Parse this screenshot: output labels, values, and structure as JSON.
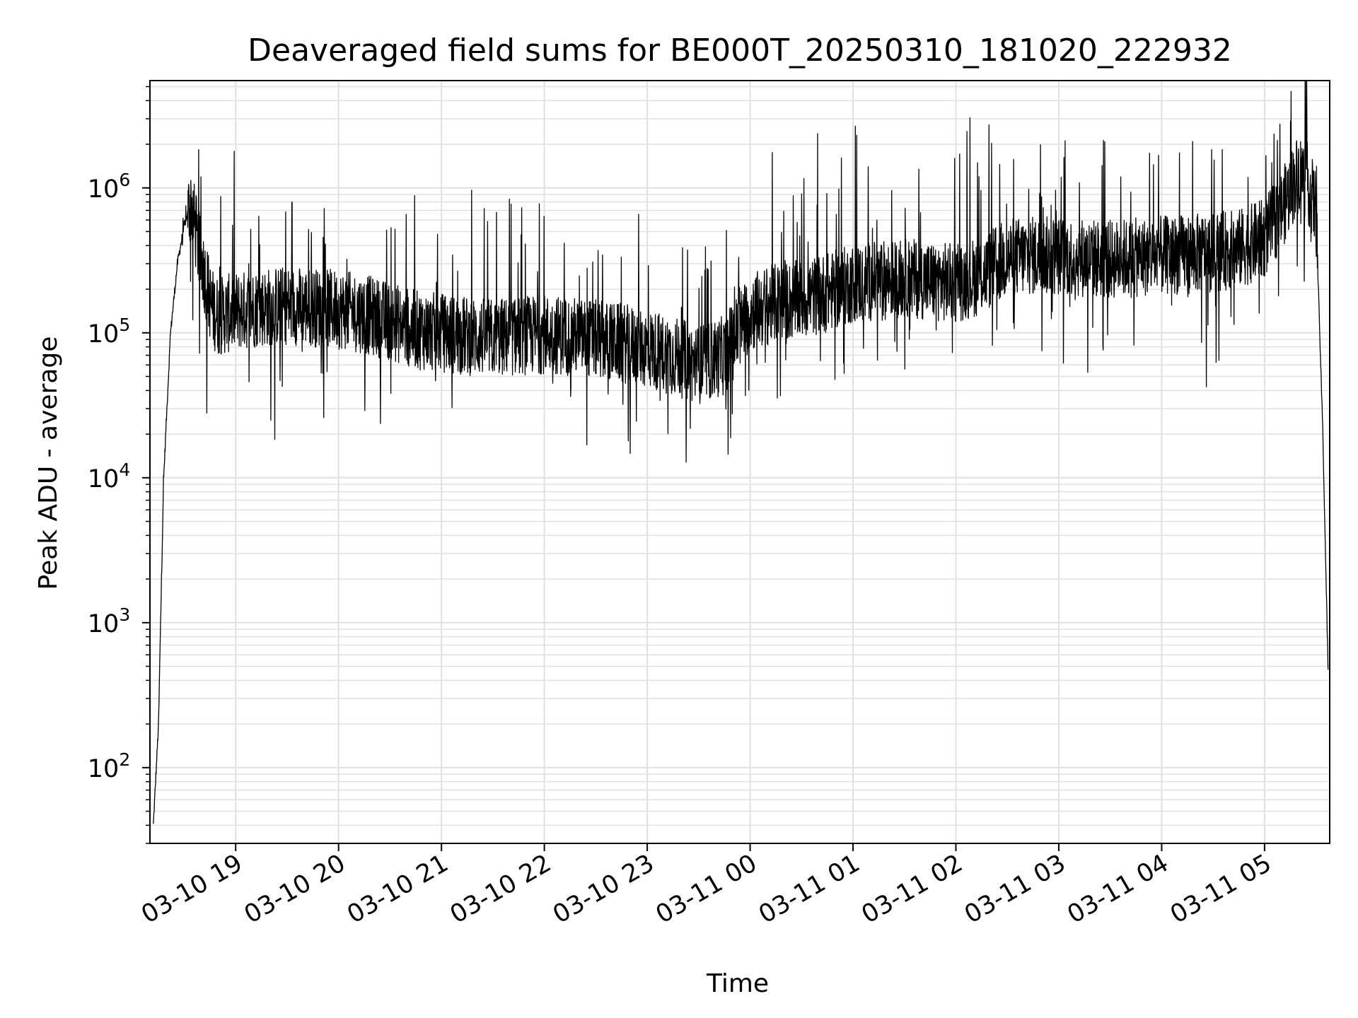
{
  "chart_data": {
    "type": "line",
    "title": "Deaveraged field sums for BE000T_20250310_181020_222932",
    "xlabel": "Time",
    "ylabel": "Peak ADU - average",
    "yscale": "log",
    "ylim": [
      30,
      5500000
    ],
    "xlim": [
      "03-10 18:10",
      "03-11 05:38"
    ],
    "grid": true,
    "line_color": "#000000",
    "grid_color": "#e0e0e0",
    "x_ticks": [
      {
        "label": "03-10 19",
        "time": "03-10 19:00"
      },
      {
        "label": "03-10 20",
        "time": "03-10 20:00"
      },
      {
        "label": "03-10 21",
        "time": "03-10 21:00"
      },
      {
        "label": "03-10 22",
        "time": "03-10 22:00"
      },
      {
        "label": "03-10 23",
        "time": "03-10 23:00"
      },
      {
        "label": "03-11 00",
        "time": "03-11 00:00"
      },
      {
        "label": "03-11 01",
        "time": "03-11 01:00"
      },
      {
        "label": "03-11 02",
        "time": "03-11 02:00"
      },
      {
        "label": "03-11 03",
        "time": "03-11 03:00"
      },
      {
        "label": "03-11 04",
        "time": "03-11 04:00"
      },
      {
        "label": "03-11 05",
        "time": "03-11 05:00"
      }
    ],
    "y_ticks": [
      {
        "base": "10",
        "exp": "2",
        "value": 100
      },
      {
        "base": "10",
        "exp": "3",
        "value": 1000
      },
      {
        "base": "10",
        "exp": "4",
        "value": 10000
      },
      {
        "base": "10",
        "exp": "5",
        "value": 100000
      },
      {
        "base": "10",
        "exp": "6",
        "value": 1000000
      }
    ],
    "series": [
      {
        "x": [
          "03-10 18:12",
          "03-10 18:15",
          "03-10 18:18",
          "03-10 18:22",
          "03-10 18:26",
          "03-10 18:30",
          "03-10 18:34",
          "03-10 18:38",
          "03-10 18:42",
          "03-10 18:46",
          "03-10 18:50",
          "03-10 19:00",
          "03-10 19:15",
          "03-10 19:30",
          "03-10 19:45",
          "03-10 20:00",
          "03-10 20:15",
          "03-10 20:30",
          "03-10 20:45",
          "03-10 21:00",
          "03-10 21:15",
          "03-10 21:30",
          "03-10 21:45",
          "03-10 22:00",
          "03-10 22:15",
          "03-10 22:30",
          "03-10 22:45",
          "03-10 23:00",
          "03-10 23:15",
          "03-10 23:30",
          "03-10 23:45",
          "03-11 00:00",
          "03-11 00:15",
          "03-11 00:30",
          "03-11 00:45",
          "03-11 01:00",
          "03-11 01:15",
          "03-11 01:30",
          "03-11 01:45",
          "03-11 02:00",
          "03-11 02:15",
          "03-11 02:30",
          "03-11 02:45",
          "03-11 03:00",
          "03-11 03:15",
          "03-11 03:30",
          "03-11 03:45",
          "03-11 04:00",
          "03-11 04:15",
          "03-11 04:30",
          "03-11 04:45",
          "03-11 05:00",
          "03-11 05:10",
          "03-11 05:20",
          "03-11 05:25",
          "03-11 05:30",
          "03-11 05:34",
          "03-11 05:37"
        ],
        "y": [
          40,
          200,
          10000,
          100000,
          300000,
          550000,
          800000,
          400000,
          250000,
          150000,
          130000,
          140000,
          150000,
          155000,
          150000,
          145000,
          135000,
          120000,
          105000,
          100000,
          95000,
          92000,
          95000,
          98000,
          95000,
          90000,
          85000,
          78000,
          70000,
          60000,
          70000,
          140000,
          160000,
          170000,
          190000,
          220000,
          230000,
          240000,
          230000,
          220000,
          250000,
          330000,
          340000,
          340000,
          330000,
          320000,
          330000,
          340000,
          350000,
          360000,
          380000,
          450000,
          700000,
          1300000,
          1100000,
          700000,
          20000,
          500
        ]
      }
    ]
  }
}
